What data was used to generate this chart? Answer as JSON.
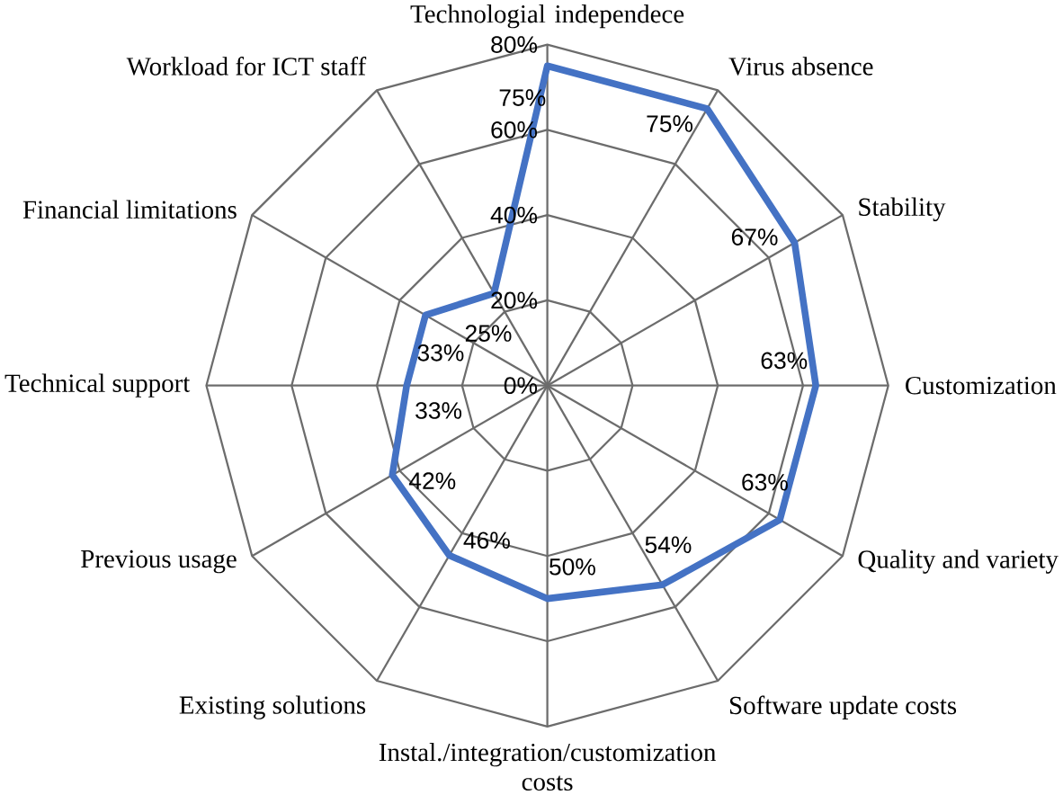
{
  "chart_data": {
    "type": "radar",
    "categories": [
      "Technologial independece",
      "Virus absence",
      "Stability",
      "Customization",
      "Quality and variety",
      "Software update costs",
      "Instal./integration/customization costs",
      "Existing solutions",
      "Previous usage",
      "Technical support",
      "Financial limitations",
      "Workload for ICT staff"
    ],
    "series": [
      {
        "color": "#4472c4",
        "values": [
          75,
          75,
          67,
          63,
          63,
          54,
          50,
          46,
          42,
          33,
          33,
          25
        ],
        "value_labels": [
          "75%",
          "75%",
          "67%",
          "63%",
          "63%",
          "54%",
          "50%",
          "46%",
          "42%",
          "33%",
          "33%",
          "25%"
        ]
      }
    ],
    "ylim": [
      0,
      80
    ],
    "yticks": [
      {
        "value": 0,
        "label": "0%"
      },
      {
        "value": 20,
        "label": "20%"
      },
      {
        "value": 40,
        "label": "40%"
      },
      {
        "value": 60,
        "label": "60%"
      },
      {
        "value": 80,
        "label": "80%"
      }
    ],
    "grid": true,
    "marker": "none",
    "line_style": "solid"
  }
}
